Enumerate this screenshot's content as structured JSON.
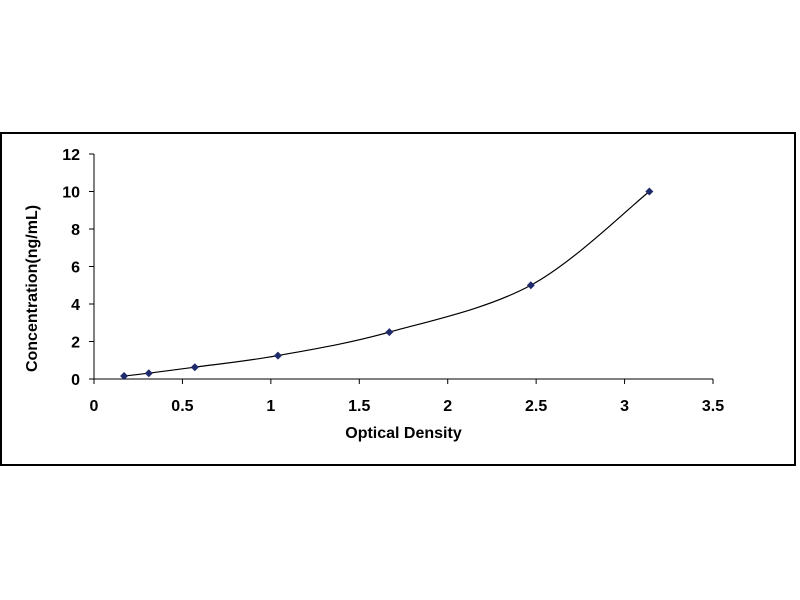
{
  "chart_data": {
    "type": "scatter",
    "title": "",
    "xlabel": "Optical Density",
    "ylabel": "Concentration(ng/mL)",
    "xlim": [
      0,
      3.5
    ],
    "ylim": [
      0,
      12
    ],
    "xticks": [
      "0",
      "0.5",
      "1",
      "1.5",
      "2",
      "2.5",
      "3",
      "3.5"
    ],
    "yticks": [
      "0",
      "2",
      "4",
      "6",
      "8",
      "10",
      "12"
    ],
    "grid": false,
    "legend": "none",
    "trendline": "smooth curve through points",
    "marker_color": "#1f2a6b",
    "line_color": "#000000",
    "series": [
      {
        "x": [
          0.17,
          0.31,
          0.57,
          1.04,
          1.67,
          2.47,
          3.14
        ],
        "y": [
          0.16,
          0.31,
          0.63,
          1.25,
          2.5,
          5.0,
          10.0
        ]
      }
    ]
  }
}
